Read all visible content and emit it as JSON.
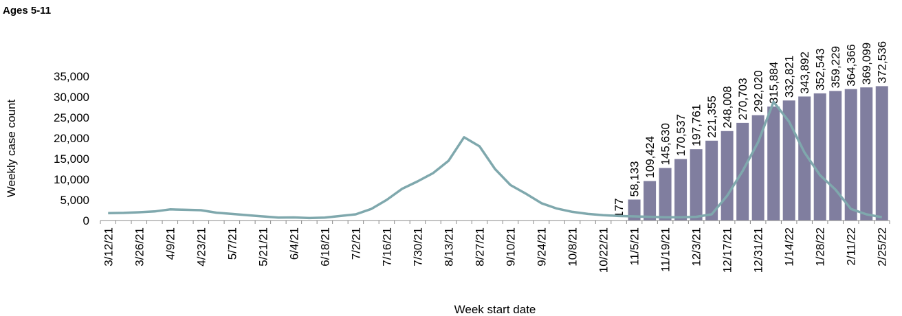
{
  "chart_data": {
    "type": "combo",
    "title": "Ages 5-11",
    "ylabel": "Weekly case count",
    "xlabel": "Week start date",
    "categories": [
      "3/12/21",
      null,
      "3/26/21",
      null,
      "4/9/21",
      null,
      "4/23/21",
      null,
      "5/7/21",
      null,
      "5/21/21",
      null,
      "6/4/21",
      null,
      "6/18/21",
      null,
      "7/2/21",
      null,
      "7/16/21",
      null,
      "7/30/21",
      null,
      "8/13/21",
      null,
      "8/27/21",
      null,
      "9/10/21",
      null,
      "9/24/21",
      null,
      "10/8/21",
      null,
      "10/22/21",
      null,
      "11/5/21",
      null,
      "11/19/21",
      null,
      "12/3/21",
      null,
      "12/17/21",
      null,
      "12/31/21",
      null,
      "1/14/22",
      null,
      "1/28/22",
      null,
      "2/11/22",
      null,
      "2/25/22"
    ],
    "ylim": [
      0,
      35000
    ],
    "yticks": [
      {
        "value": 0,
        "label": "0"
      },
      {
        "value": 5000,
        "label": "5,000"
      },
      {
        "value": 10000,
        "label": "10,000"
      },
      {
        "value": 15000,
        "label": "15,000"
      },
      {
        "value": 20000,
        "label": "20,000"
      },
      {
        "value": 25000,
        "label": "25,000"
      },
      {
        "value": 30000,
        "label": "30,000"
      },
      {
        "value": 35000,
        "label": "35,000"
      }
    ],
    "y2lim": [
      0,
      400000
    ],
    "series": [
      {
        "type": "bar",
        "axis": "y2",
        "color": "#807e9f",
        "values": [
          null,
          null,
          null,
          null,
          null,
          null,
          null,
          null,
          null,
          null,
          null,
          null,
          null,
          null,
          null,
          null,
          null,
          null,
          null,
          null,
          null,
          null,
          null,
          null,
          null,
          null,
          null,
          null,
          null,
          null,
          null,
          null,
          null,
          177,
          58133,
          109424,
          145630,
          170537,
          197761,
          221355,
          248008,
          270703,
          292020,
          315884,
          332821,
          343892,
          352543,
          359229,
          364366,
          369099,
          372536
        ],
        "value_labels": [
          null,
          null,
          null,
          null,
          null,
          null,
          null,
          null,
          null,
          null,
          null,
          null,
          null,
          null,
          null,
          null,
          null,
          null,
          null,
          null,
          null,
          null,
          null,
          null,
          null,
          null,
          null,
          null,
          null,
          null,
          null,
          null,
          null,
          "177",
          "58,133",
          "109,424",
          "145,630",
          "170,537",
          "197,761",
          "221,355",
          "248,008",
          "270,703",
          "292,020",
          "315,884",
          "332,821",
          "343,892",
          "352,543",
          "359,229",
          "364,366",
          "369,099",
          "372,536"
        ]
      },
      {
        "type": "line",
        "color": "#7fa8ad",
        "values": [
          1800,
          1850,
          2000,
          2200,
          2700,
          2600,
          2500,
          1900,
          1600,
          1300,
          1000,
          700,
          750,
          600,
          700,
          1100,
          1500,
          2800,
          5000,
          7700,
          9500,
          11500,
          14500,
          20200,
          18000,
          12500,
          8600,
          6500,
          4200,
          2900,
          2100,
          1600,
          1300,
          1100,
          1000,
          900,
          800,
          800,
          900,
          1500,
          6000,
          12000,
          19000,
          28800,
          24000,
          16500,
          11000,
          7500,
          2800,
          1500,
          800
        ]
      }
    ]
  }
}
